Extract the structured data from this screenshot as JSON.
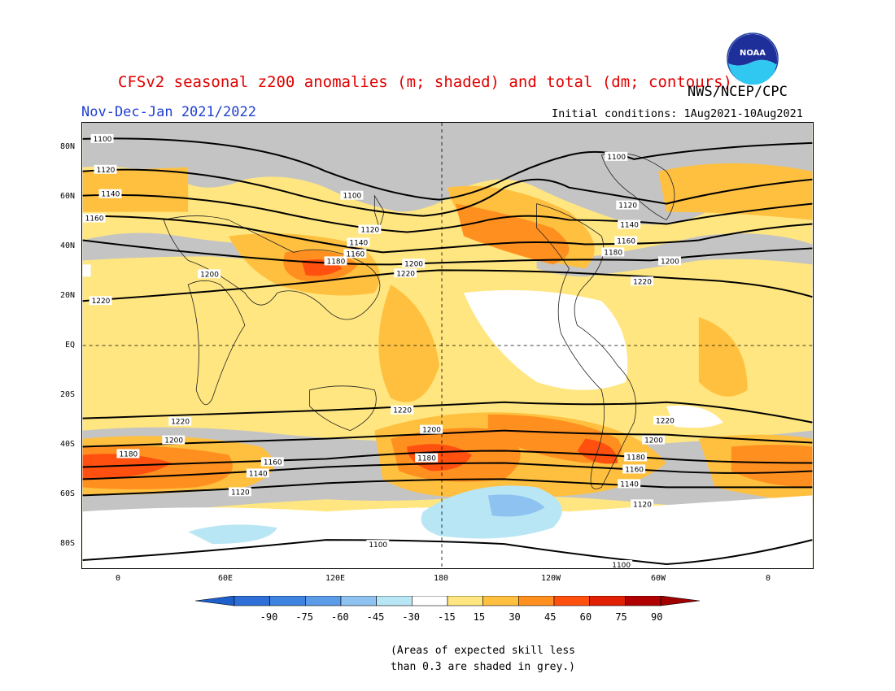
{
  "header": {
    "title": "CFSv2 seasonal z200 anomalies (m; shaded) and total (dm; contours)",
    "period": "Nov-Dec-Jan 2021/2022",
    "agency": "NWS/NCEP/CPC",
    "initial_conditions": "Initial conditions: 1Aug2021-10Aug2021",
    "logo_text": "NOAA",
    "colors": {
      "title": "#e00000",
      "period": "#2040d0"
    }
  },
  "map": {
    "lat_ticks": [
      "80N",
      "60N",
      "40N",
      "20N",
      "EQ",
      "20S",
      "40S",
      "60S",
      "80S"
    ],
    "lon_ticks": [
      "0",
      "60E",
      "120E",
      "180",
      "120W",
      "60W",
      "0"
    ],
    "contour_labels": [
      "1100",
      "1120",
      "1140",
      "1160",
      "1180",
      "1200",
      "1220"
    ],
    "anomaly_regions": [
      {
        "label": "1180",
        "lon": 180,
        "lat": -45
      },
      {
        "label": "1200",
        "lon": -45,
        "lat": -35
      }
    ]
  },
  "colorbar": {
    "labels": [
      "-90",
      "-75",
      "-60",
      "-45",
      "-30",
      "-15",
      "15",
      "30",
      "45",
      "60",
      "75",
      "90"
    ],
    "colors": [
      "#2f6fd8",
      "#3d83e0",
      "#5b9be8",
      "#8ec2f0",
      "#b8e6f4",
      "#ffffff",
      "#ffe680",
      "#ffc040",
      "#ff9020",
      "#ff5010",
      "#e02000",
      "#b00000"
    ],
    "low_arrow": "#1e5fcc",
    "high_arrow": "#a00000"
  },
  "note": {
    "line1": "(Areas of expected skill less",
    "line2": "than 0.3 are shaded in grey.)"
  }
}
